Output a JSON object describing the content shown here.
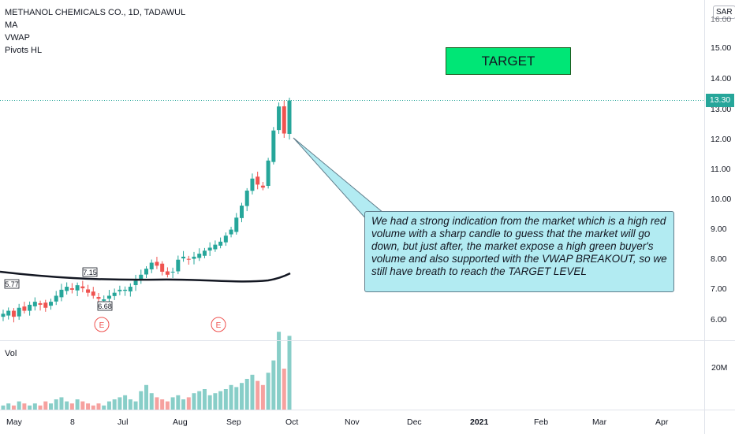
{
  "legend": {
    "symbol": "METHANOL CHEMICALS CO., 1D, TADAWUL",
    "indicators": [
      "MA",
      "VWAP",
      "Pivots HL"
    ]
  },
  "volume_label": "Vol",
  "currency_badge": "SAR",
  "price_axis": {
    "ticks": [
      "15.00",
      "14.00",
      "13.00",
      "12.00",
      "11.00",
      "10.00",
      "9.00",
      "8.00",
      "7.00",
      "6.00"
    ],
    "top_tick_partial": "16.00",
    "current_price": "13.30",
    "volume_tick": "20M"
  },
  "time_axis": {
    "ticks": [
      "May",
      "8",
      "Jul",
      "Aug",
      "Sep",
      "Oct",
      "Nov",
      "Dec",
      "2021",
      "Feb",
      "Mar",
      "Apr"
    ],
    "bold": [
      "2021"
    ]
  },
  "pivots": [
    {
      "label": "5.77"
    },
    {
      "label": "7.15"
    },
    {
      "label": "6.68"
    }
  ],
  "earnings_markers": [
    "E",
    "E"
  ],
  "target_label": "TARGET",
  "annotation": "We had a strong indication from the market which is a high red volume with  a sharp candle to guess that the market will go down, but just after, the market expose a high green buyer's volume and also supported with the VWAP BREAKOUT, so we still have breath to reach the TARGET LEVEL",
  "colors": {
    "up": "#26a69a",
    "down": "#ef5350",
    "ma_line": "#131722",
    "target_fill": "#00e676",
    "callout_fill": "#b2ebf2",
    "price_line": "#26a69a"
  },
  "chart_data": {
    "type": "candlestick",
    "ylim": [
      5.6,
      16.0
    ],
    "current_price": 13.3,
    "series_note_close": [
      6.2,
      6.3,
      6.1,
      6.4,
      6.3,
      6.5,
      6.6,
      6.5,
      6.4,
      6.6,
      6.8,
      7.0,
      7.1,
      7.0,
      7.15,
      7.05,
      6.9,
      6.8,
      6.7,
      6.68,
      6.8,
      6.9,
      7.0,
      7.0,
      7.1,
      7.3,
      7.5,
      7.7,
      7.9,
      7.8,
      7.6,
      7.5,
      7.6,
      8.0,
      8.1,
      8.0,
      8.1,
      8.2,
      8.3,
      8.4,
      8.5,
      8.6,
      8.8,
      9.0,
      9.4,
      9.8,
      10.3,
      10.7,
      10.5,
      10.4,
      11.3,
      12.3,
      13.1,
      12.2,
      13.3
    ],
    "volume_note_millions": [
      2,
      3,
      2,
      4,
      3,
      2,
      3,
      2,
      4,
      3,
      5,
      6,
      4,
      3,
      5,
      4,
      3,
      2,
      3,
      2,
      4,
      5,
      6,
      7,
      5,
      4,
      9,
      12,
      8,
      6,
      5,
      4,
      6,
      7,
      5,
      6,
      8,
      9,
      10,
      7,
      8,
      9,
      10,
      12,
      11,
      13,
      15,
      17,
      14,
      12,
      18,
      24,
      38,
      20,
      36
    ]
  }
}
